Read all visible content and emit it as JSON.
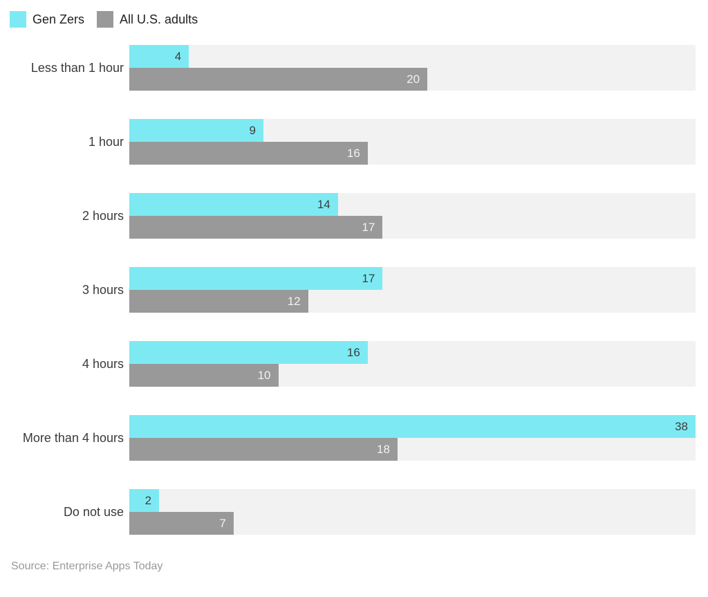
{
  "legend": [
    {
      "label": "Gen Zers",
      "color": "#7DEAF3"
    },
    {
      "label": "All U.S. adults",
      "color": "#999999"
    }
  ],
  "chart_data": {
    "type": "bar",
    "orientation": "horizontal",
    "categories": [
      "Less than 1 hour",
      "1 hour",
      "2 hours",
      "3 hours",
      "4 hours",
      "More than 4 hours",
      "Do not use"
    ],
    "series": [
      {
        "name": "Gen Zers",
        "color": "#7DEAF3",
        "values": [
          4,
          9,
          14,
          17,
          16,
          38,
          2
        ]
      },
      {
        "name": "All U.S. adults",
        "color": "#999999",
        "values": [
          20,
          16,
          17,
          12,
          10,
          18,
          7
        ]
      }
    ],
    "xlim": [
      0,
      38
    ],
    "grid": false,
    "legend_position": "top-left",
    "track_color": "#F2F2F2",
    "value_label_color_on_genz": "#3D3D3D",
    "value_label_color_on_adults": "#F2F2F2",
    "category_label_color": "#3A3A3A"
  },
  "source": "Source: Enterprise Apps Today"
}
